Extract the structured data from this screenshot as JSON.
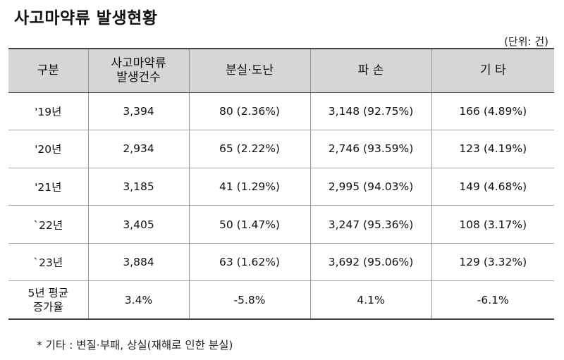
{
  "title": "사고마약류 발생현황",
  "unit": "(단위: 건)",
  "table": {
    "headers": [
      "구분",
      "사고마약류\n발생건수",
      "분실·도난",
      "파 손",
      "기 타"
    ],
    "rows": [
      [
        "'19년",
        "3,394",
        "80 (2.36%)",
        "3,148 (92.75%)",
        "166 (4.89%)"
      ],
      [
        "'20년",
        "2,934",
        "65 (2.22%)",
        "2,746 (93.59%)",
        "123 (4.19%)"
      ],
      [
        "'21년",
        "3,185",
        "41 (1.29%)",
        "2,995 (94.03%)",
        "149 (4.68%)"
      ],
      [
        "`22년",
        "3,405",
        "50 (1.47%)",
        "3,247 (95.36%)",
        "108 (3.17%)"
      ],
      [
        "`23년",
        "3,884",
        "63 (1.62%)",
        "3,692 (95.06%)",
        "129 (3.32%)"
      ],
      [
        "5년 평균\n증가율",
        "3.4%",
        "-5.8%",
        "4.1%",
        "-6.1%"
      ]
    ]
  },
  "note": "* 기타 : 변질·부패, 상실(재해로 인한 분실)"
}
